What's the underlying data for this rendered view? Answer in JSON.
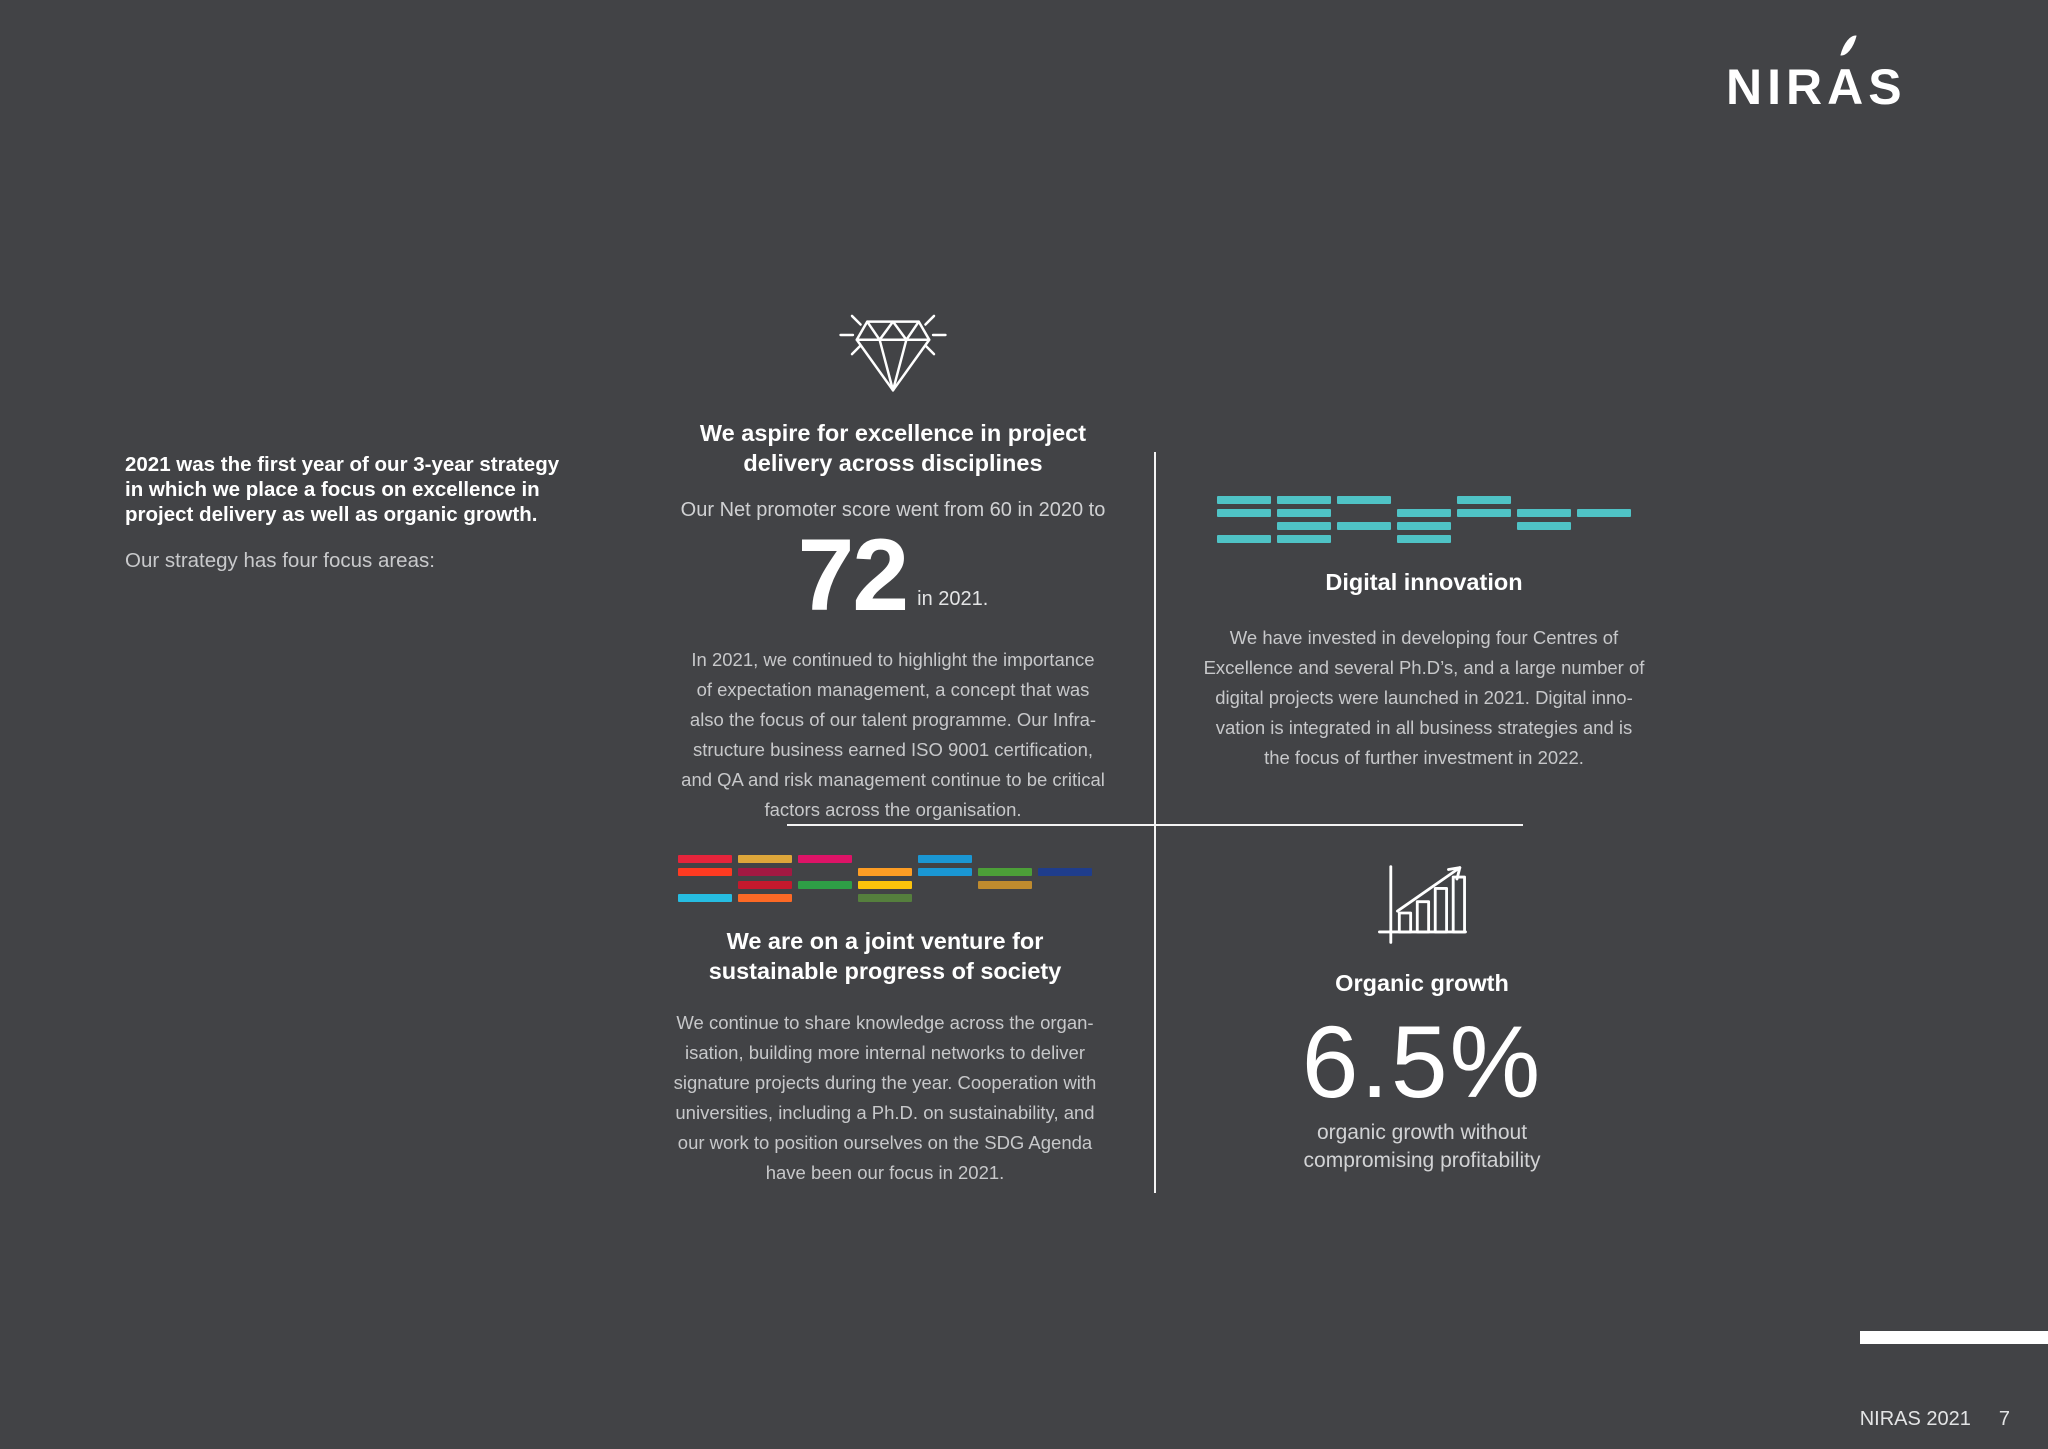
{
  "colors": {
    "background": "#424346",
    "accent_teal": "#4fc3c6"
  },
  "logo": {
    "pre": "NIR",
    "a": "A",
    "post": "S"
  },
  "intro": {
    "bold_lines": [
      "2021 was the first year of our 3-year strategy",
      "in which we place a focus on excellence in",
      "project delivery as well as organic growth."
    ],
    "regular": "Our strategy has four focus areas:"
  },
  "quadrants": {
    "excellence": {
      "heading_lines": [
        "We aspire for excellence in project",
        "delivery across disciplines"
      ],
      "nps_lead": "Our Net promoter score went from 60 in 2020 to",
      "nps_value": "72",
      "nps_suffix": "in 2021.",
      "body_lines": [
        "In 2021, we continued to highlight the importance",
        "of expectation management, a concept that was",
        "also the focus of our talent programme. Our Infra-",
        "structure business earned ISO 9001 certification,",
        "and QA and risk management continue to be critical",
        "factors across the organisation."
      ]
    },
    "digital": {
      "heading": "Digital innovation",
      "body_lines": [
        "We have invested in developing four Centres of",
        "Excellence and several Ph.D’s, and a large number of",
        "digital projects were launched in 2021. Digital inno-",
        "vation is integrated in all business strategies and is",
        "the focus of further investment in 2022."
      ]
    },
    "sustainability": {
      "heading_lines": [
        "We are on a joint venture for",
        "sustainable progress of society"
      ],
      "body_lines": [
        "We continue to share knowledge across the organ-",
        "isation, building more internal networks to deliver",
        "signature projects during the year. Cooperation with",
        "universities, including a Ph.D. on sustainability, and",
        "our work to position ourselves on the SDG Agenda",
        "have been our focus in 2021."
      ]
    },
    "organic": {
      "heading": "Organic growth",
      "value": "6.5%",
      "caption_lines": [
        "organic growth without",
        "compromising profitability"
      ]
    }
  },
  "icons": {
    "digital": {
      "color": "#4fc3c6",
      "pattern": [
        [
          1,
          1,
          1,
          0,
          1,
          0,
          0
        ],
        [
          1,
          1,
          0,
          1,
          1,
          1,
          1
        ],
        [
          0,
          1,
          1,
          1,
          0,
          1,
          0
        ],
        [
          1,
          1,
          0,
          1,
          0,
          0,
          0
        ]
      ]
    },
    "sdg": {
      "color": "#e5243b",
      "pattern": [
        [
          "#e5243b",
          "#dda63a",
          "#dd1367",
          0,
          "#1a97d4",
          0,
          0
        ],
        [
          "#ff3a21",
          "#a21942",
          0,
          "#fd9d24",
          "#1a97d4",
          "#4c9f38",
          "#1f3d8c"
        ],
        [
          0,
          "#c5192d",
          "#2e9e46",
          "#fcc30b",
          0,
          "#bf8b2e",
          0
        ],
        [
          "#26bde2",
          "#fd6925",
          0,
          "#557f3d",
          0,
          0,
          0
        ]
      ]
    }
  },
  "footer": {
    "report": "NIRAS 2021",
    "page_number": "7"
  }
}
